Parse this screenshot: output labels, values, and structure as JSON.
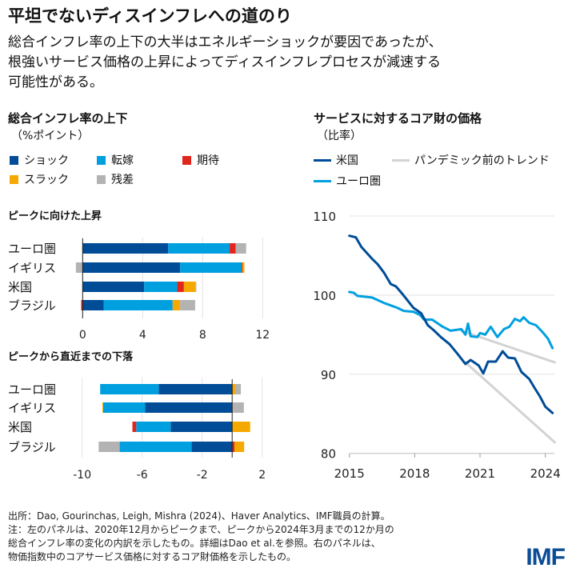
{
  "title": "平坦でないディスインフレへの道のり",
  "subtitle": [
    "総合インフレ率の上下の大半はエネルギーショックが要因であったが、",
    "根強いサービス価格の上昇によってディスインフレプロセスが減速する",
    "可能性がある。"
  ],
  "left_panel": {
    "title": "総合インフレ率の上下",
    "unit": "（%ポイント）",
    "legend": [
      {
        "label": "ショック",
        "color": "#004c97"
      },
      {
        "label": "転嫁",
        "color": "#009fdf"
      },
      {
        "label": "期待",
        "color": "#e1261c"
      },
      {
        "label": "スラック",
        "color": "#f5a800"
      },
      {
        "label": "残差",
        "color": "#b3b3b3"
      }
    ]
  },
  "right_panel": {
    "title": "サービスに対するコア財の価格",
    "unit": "（比率）",
    "legend": [
      {
        "label": "米国",
        "color": "#004c97"
      },
      {
        "label": "パンデミック前のトレンド",
        "color": "#d3d3d3"
      },
      {
        "label": "ユーロ圏",
        "color": "#00a0e0"
      }
    ]
  },
  "chart_data": [
    {
      "type": "bar",
      "orientation": "horizontal-stacked",
      "title": "ピークに向けた上昇",
      "categories": [
        "ユーロ圏",
        "イギリス",
        "米国",
        "ブラジル"
      ],
      "series": [
        {
          "name": "ショック",
          "values": [
            5.7,
            6.5,
            4.1,
            1.4
          ]
        },
        {
          "name": "転嫁",
          "values": [
            4.1,
            4.1,
            2.2,
            4.6
          ]
        },
        {
          "name": "期待",
          "values": [
            0.4,
            0.05,
            0.45,
            -0.1
          ]
        },
        {
          "name": "スラック",
          "values": [
            0,
            0.13,
            0.76,
            0.5
          ]
        },
        {
          "name": "残差",
          "values": [
            0.7,
            -0.45,
            0.07,
            1.0
          ]
        }
      ],
      "xlim": [
        -1,
        12.5
      ],
      "xticks": [
        "0",
        "4",
        "8",
        "12"
      ],
      "grid": true
    },
    {
      "type": "bar",
      "orientation": "horizontal-stacked",
      "title": "ピークから直近までの下落",
      "categories": [
        "ユーロ圏",
        "イギリス",
        "米国",
        "ブラジル"
      ],
      "series": [
        {
          "name": "ショック",
          "values": [
            -4.9,
            -5.8,
            -4.1,
            -2.7
          ]
        },
        {
          "name": "転嫁",
          "values": [
            -3.9,
            -2.8,
            -2.3,
            -4.8
          ]
        },
        {
          "name": "期待",
          "values": [
            0,
            0,
            -0.25,
            0.15
          ]
        },
        {
          "name": "スラック",
          "values": [
            0.2,
            -0.05,
            1.2,
            0.65
          ]
        },
        {
          "name": "残差",
          "values": [
            0.38,
            0.78,
            0,
            -1.4
          ]
        }
      ],
      "xlim": [
        -10.5,
        2.3
      ],
      "xticks": [
        "-10",
        "-6",
        "-2",
        "2"
      ],
      "grid": true
    },
    {
      "type": "line",
      "title": "サービスに対するコア財の価格",
      "ylabel": "（比率）",
      "ylim": [
        80,
        110
      ],
      "yticks": [
        "80",
        "90",
        "100",
        "110"
      ],
      "xlim": [
        2015,
        2024.45
      ],
      "xticks": [
        "2015",
        "2018",
        "2021",
        "2024"
      ],
      "grid": true,
      "series": [
        {
          "name": "米国",
          "color": "#004c97",
          "points": [
            [
              2015.0,
              107.5
            ],
            [
              2015.3,
              107.3
            ],
            [
              2015.55,
              106.1
            ],
            [
              2016.04,
              104.6
            ],
            [
              2016.3,
              103.9
            ],
            [
              2016.6,
              102.8
            ],
            [
              2016.9,
              101.4
            ],
            [
              2017.14,
              101.1
            ],
            [
              2017.45,
              100.1
            ],
            [
              2017.94,
              98.4
            ],
            [
              2018.3,
              97.7
            ],
            [
              2018.6,
              96.2
            ],
            [
              2018.9,
              95.5
            ],
            [
              2019.2,
              94.7
            ],
            [
              2019.6,
              93.8
            ],
            [
              2019.96,
              92.6
            ],
            [
              2020.33,
              91.3
            ],
            [
              2020.57,
              91.8
            ],
            [
              2020.94,
              91.1
            ],
            [
              2021.15,
              90.1
            ],
            [
              2021.37,
              91.6
            ],
            [
              2021.73,
              91.6
            ],
            [
              2022.04,
              92.9
            ],
            [
              2022.29,
              92.1
            ],
            [
              2022.6,
              92.0
            ],
            [
              2022.9,
              90.3
            ],
            [
              2023.26,
              89.4
            ],
            [
              2023.5,
              88.3
            ],
            [
              2023.75,
              87.2
            ],
            [
              2024.0,
              85.9
            ],
            [
              2024.33,
              85.1
            ]
          ]
        },
        {
          "name": "ユーロ圏",
          "color": "#00a0e0",
          "points": [
            [
              2015.0,
              100.4
            ],
            [
              2015.2,
              100.3
            ],
            [
              2015.37,
              99.9
            ],
            [
              2016.04,
              99.7
            ],
            [
              2016.6,
              99.0
            ],
            [
              2017.2,
              98.4
            ],
            [
              2017.5,
              98.0
            ],
            [
              2017.94,
              97.9
            ],
            [
              2018.24,
              97.5
            ],
            [
              2018.43,
              96.9
            ],
            [
              2018.8,
              96.9
            ],
            [
              2019.29,
              96.0
            ],
            [
              2019.65,
              95.5
            ],
            [
              2020.14,
              95.7
            ],
            [
              2020.33,
              95.0
            ],
            [
              2020.45,
              96.4
            ],
            [
              2020.57,
              94.8
            ],
            [
              2020.88,
              94.7
            ],
            [
              2021.0,
              95.2
            ],
            [
              2021.24,
              95.0
            ],
            [
              2021.49,
              96.0
            ],
            [
              2021.8,
              94.7
            ],
            [
              2022.1,
              95.7
            ],
            [
              2022.35,
              96.0
            ],
            [
              2022.6,
              97.0
            ],
            [
              2022.84,
              96.7
            ],
            [
              2023.0,
              97.2
            ],
            [
              2023.26,
              96.5
            ],
            [
              2023.57,
              96.2
            ],
            [
              2023.88,
              95.3
            ],
            [
              2024.12,
              94.5
            ],
            [
              2024.33,
              93.3
            ]
          ]
        },
        {
          "name": "パンデミック前のトレンド",
          "color": "#d3d3d3",
          "points": [
            [
              2020.14,
              95.5
            ],
            [
              2024.43,
              91.5
            ]
          ]
        },
        {
          "name": "パンデミック前のトレンド",
          "color": "#d3d3d3",
          "points": [
            [
              2020.33,
              91.5
            ],
            [
              2024.43,
              81.4
            ]
          ]
        }
      ]
    }
  ],
  "footer": [
    "出所：Dao, Gourinchas, Leigh, Mishra (2024)、Haver Analytics、IMF職員の計算。",
    "注：左のパネルは、2020年12月からピークまで、ピークから2024年3月までの12か月の",
    "総合インフレ率の変化の内訳を示したもの。詳細はDao et al.を参照。右のパネルは、",
    "物価指数中のコアサービス価格に対するコア財価格を示したもの。"
  ],
  "logo": "IMF"
}
